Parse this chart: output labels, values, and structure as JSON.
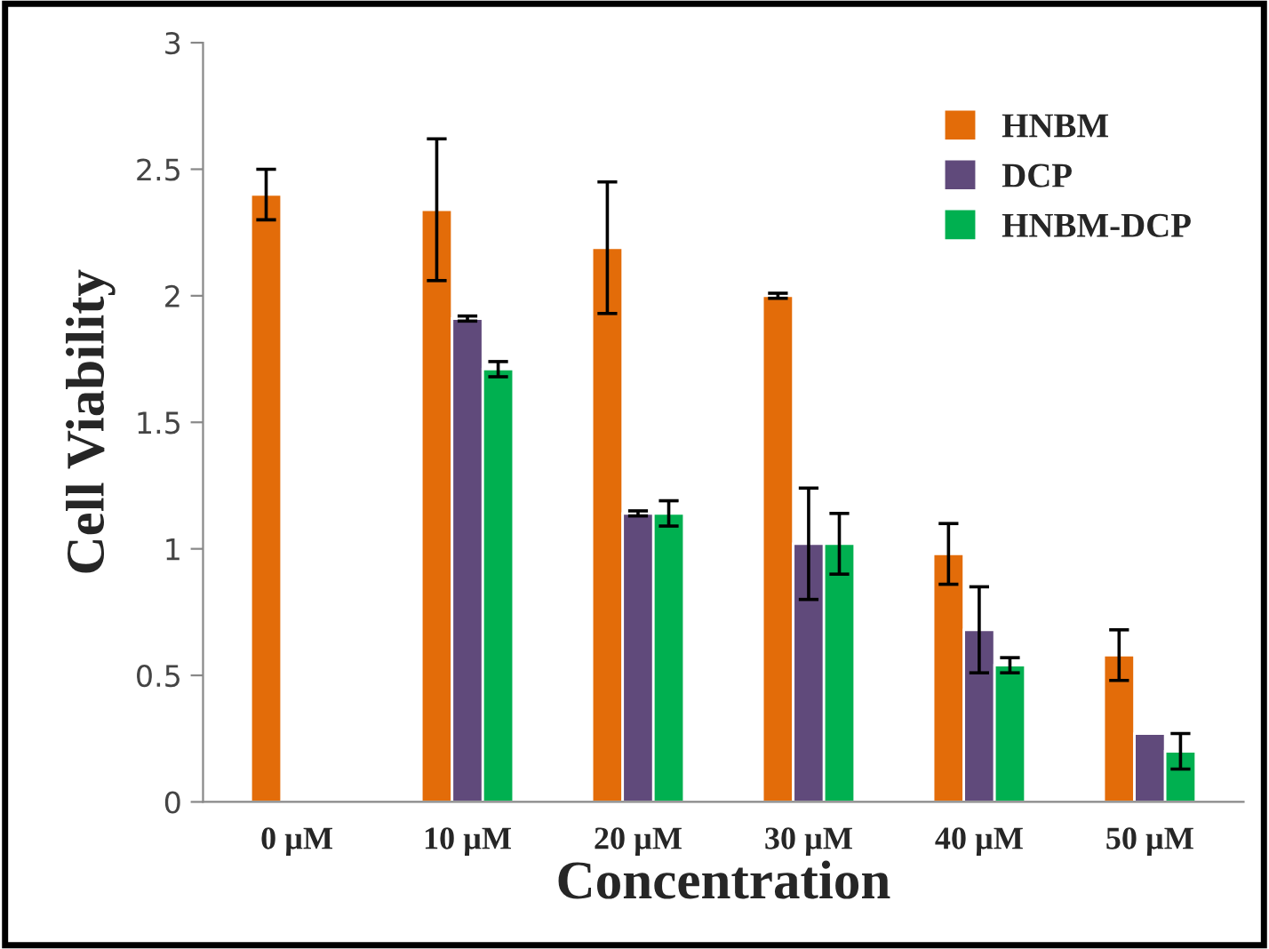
{
  "chart_data": {
    "type": "bar",
    "xlabel": "Concentration",
    "ylabel": "Cell Viability",
    "categories": [
      "0 µM",
      "10 µM",
      "20 µM",
      "30 µM",
      "40 µM",
      "50 µM"
    ],
    "series": [
      {
        "name": "HNBM",
        "color": "#e36c09",
        "values": [
          2.4,
          2.34,
          2.19,
          2.0,
          0.98,
          0.58
        ],
        "errors": [
          0.1,
          0.28,
          0.26,
          0.01,
          0.12,
          0.1
        ]
      },
      {
        "name": "DCP",
        "color": "#604a7b",
        "values": [
          null,
          1.91,
          1.14,
          1.02,
          0.68,
          0.27
        ],
        "errors": [
          null,
          0.01,
          0.01,
          0.22,
          0.17,
          null
        ]
      },
      {
        "name": "HNBM-DCP",
        "color": "#00b050",
        "values": [
          null,
          1.71,
          1.14,
          1.02,
          0.54,
          0.2
        ],
        "errors": [
          null,
          0.03,
          0.05,
          0.12,
          0.03,
          0.07
        ]
      }
    ],
    "ylim": [
      0,
      3
    ],
    "yticks": [
      0,
      0.5,
      1,
      {
        "value": 1.5,
        "label": "1.5"
      },
      2,
      2.5,
      3
    ],
    "grid": false,
    "legend": "top right"
  }
}
